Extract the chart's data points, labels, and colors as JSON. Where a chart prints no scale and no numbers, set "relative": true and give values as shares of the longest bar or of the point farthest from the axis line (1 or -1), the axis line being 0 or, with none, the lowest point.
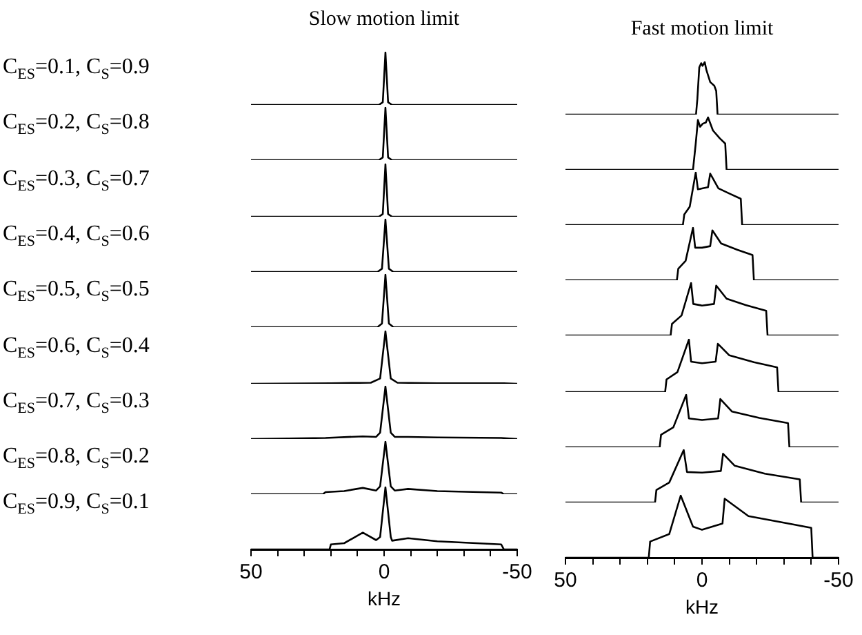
{
  "chart_data": [
    {
      "type": "line",
      "relative": true,
      "title": "Slow motion limit",
      "ylabel": "C$_{ES}$=0.1, C$_{S}$=0.9",
      "color": "#000000",
      "xlim": [
        50,
        -50
      ],
      "tick_labels": false,
      "x": [
        50,
        2,
        0.5,
        -0.5,
        -1.5,
        -3,
        -50
      ],
      "values": [
        0,
        0,
        0.05,
        1,
        0.05,
        0,
        0
      ]
    },
    {
      "type": "line",
      "relative": true,
      "title": "Fast motion limit",
      "color": "#000000",
      "xlim": [
        50,
        -50
      ],
      "tick_labels": false,
      "x": [
        50,
        2.2,
        1.7,
        1,
        0.3,
        -0.2,
        -1,
        -1.6,
        -3,
        -4.5,
        -5.2,
        -5.7,
        -50
      ],
      "values": [
        0,
        0,
        0.3,
        0.9,
        0.98,
        0.93,
        1,
        0.85,
        0.62,
        0.55,
        0.45,
        0,
        0
      ]
    },
    {
      "type": "line",
      "relative": true,
      "ylabel": "C$_{ES}$=0.2, C$_{S}$=0.8",
      "color": "#000000",
      "xlim": [
        50,
        -50
      ],
      "tick_labels": false,
      "x": [
        50,
        2,
        0.5,
        -0.5,
        -1.5,
        -3,
        -50
      ],
      "values": [
        0,
        0,
        0.05,
        1,
        0.05,
        0,
        0
      ]
    },
    {
      "type": "line",
      "relative": true,
      "color": "#000000",
      "xlim": [
        50,
        -50
      ],
      "tick_labels": false,
      "x": [
        50,
        3.3,
        2.8,
        2.3,
        1.5,
        0.7,
        -0.3,
        -1.4,
        -2.2,
        -4,
        -6.5,
        -8.5,
        -9,
        -50
      ],
      "values": [
        0,
        0,
        0.25,
        0.5,
        0.95,
        0.82,
        0.88,
        0.9,
        1,
        0.75,
        0.6,
        0.5,
        0,
        0
      ]
    },
    {
      "type": "line",
      "relative": true,
      "ylabel": "C$_{ES}$=0.3, C$_{S}$=0.7",
      "color": "#000000",
      "xlim": [
        50,
        -50
      ],
      "tick_labels": false,
      "x": [
        50,
        2,
        0.5,
        -0.5,
        -1.5,
        -3,
        -50
      ],
      "values": [
        0,
        0,
        0.05,
        1,
        0.05,
        0,
        0
      ]
    },
    {
      "type": "line",
      "relative": true,
      "color": "#000000",
      "xlim": [
        50,
        -50
      ],
      "tick_labels": false,
      "x": [
        50,
        7,
        6.5,
        4.5,
        2.3,
        1.5,
        -0.3,
        -2.2,
        -3,
        -6,
        -10,
        -14.2,
        -14.7,
        -50
      ],
      "values": [
        0,
        0,
        0.2,
        0.35,
        1,
        0.68,
        0.7,
        0.72,
        0.98,
        0.7,
        0.6,
        0.5,
        0,
        0
      ]
    },
    {
      "type": "line",
      "relative": true,
      "ylabel": "C$_{ES}$=0.4, C$_{S}$=0.6",
      "color": "#000000",
      "xlim": [
        50,
        -50
      ],
      "tick_labels": false,
      "x": [
        50,
        2.5,
        0.8,
        -0.5,
        -1.8,
        -3.5,
        -50
      ],
      "values": [
        0,
        0,
        0.06,
        1,
        0.06,
        0,
        0
      ]
    },
    {
      "type": "line",
      "relative": true,
      "color": "#000000",
      "xlim": [
        50,
        -50
      ],
      "tick_labels": false,
      "x": [
        50,
        9.2,
        8.7,
        6,
        3.3,
        2.5,
        0,
        -3,
        -3.8,
        -7,
        -13,
        -18.5,
        -19,
        -50
      ],
      "values": [
        0,
        0,
        0.22,
        0.37,
        1,
        0.62,
        0.62,
        0.65,
        0.95,
        0.7,
        0.58,
        0.48,
        0,
        0
      ]
    },
    {
      "type": "line",
      "relative": true,
      "ylabel": "C$_{ES}$=0.5, C$_{S}$=0.5",
      "color": "#000000",
      "xlim": [
        50,
        -50
      ],
      "tick_labels": false,
      "x": [
        50,
        2.5,
        0.8,
        -0.5,
        -1.8,
        -3.5,
        -50
      ],
      "values": [
        0,
        0,
        0.07,
        1,
        0.07,
        0,
        0
      ]
    },
    {
      "type": "line",
      "relative": true,
      "color": "#000000",
      "xlim": [
        50,
        -50
      ],
      "tick_labels": false,
      "x": [
        50,
        11.5,
        11,
        7.5,
        4,
        3.2,
        0,
        -4.4,
        -5.2,
        -9,
        -16,
        -23.5,
        -24,
        -50
      ],
      "values": [
        0,
        0,
        0.22,
        0.38,
        1,
        0.6,
        0.57,
        0.6,
        0.95,
        0.7,
        0.58,
        0.47,
        0,
        0
      ]
    },
    {
      "type": "line",
      "relative": true,
      "ylabel": "C$_{ES}$=0.6, C$_{S}$=0.4",
      "color": "#000000",
      "xlim": [
        50,
        -50
      ],
      "tick_labels": false,
      "x": [
        50,
        20,
        5,
        1.5,
        -0.5,
        -2.5,
        -5,
        -20,
        -45,
        -50
      ],
      "values": [
        0,
        0.01,
        0.02,
        0.1,
        1,
        0.1,
        0.02,
        0.01,
        0.01,
        0
      ]
    },
    {
      "type": "line",
      "relative": true,
      "color": "#000000",
      "xlim": [
        50,
        -50
      ],
      "tick_labels": false,
      "x": [
        50,
        13.5,
        13,
        9,
        4.8,
        4,
        0,
        -5,
        -5.8,
        -10,
        -19,
        -27.5,
        -28,
        -50
      ],
      "values": [
        0,
        0,
        0.24,
        0.38,
        1,
        0.58,
        0.55,
        0.58,
        0.92,
        0.7,
        0.57,
        0.47,
        0,
        0
      ]
    },
    {
      "type": "line",
      "relative": true,
      "ylabel": "C$_{ES}$=0.7, C$_{S}$=0.3",
      "color": "#000000",
      "xlim": [
        50,
        -50
      ],
      "tick_labels": false,
      "x": [
        50,
        22,
        8,
        3,
        1.5,
        -0.5,
        -2.5,
        -4,
        -9,
        -20,
        -44,
        -50
      ],
      "values": [
        0,
        0.02,
        0.05,
        0.04,
        0.12,
        1,
        0.12,
        0.04,
        0.04,
        0.03,
        0.02,
        0
      ]
    },
    {
      "type": "line",
      "relative": true,
      "color": "#000000",
      "xlim": [
        50,
        -50
      ],
      "tick_labels": false,
      "x": [
        50,
        15.5,
        15,
        10.5,
        5.8,
        4.8,
        0,
        -5.9,
        -6.7,
        -11,
        -21,
        -31.5,
        -32,
        -50
      ],
      "values": [
        0,
        0,
        0.24,
        0.38,
        1,
        0.55,
        0.52,
        0.55,
        0.92,
        0.68,
        0.56,
        0.46,
        0,
        0
      ]
    },
    {
      "type": "line",
      "relative": true,
      "ylabel": "C$_{ES}$=0.8, C$_{S}$=0.2",
      "color": "#000000",
      "xlim": [
        50,
        -50
      ],
      "tick_labels": false,
      "x": [
        50,
        23,
        22,
        15,
        8,
        3,
        1.5,
        -0.5,
        -2.5,
        -4,
        -9,
        -20,
        -44,
        -45,
        -50
      ],
      "values": [
        0,
        0,
        0.04,
        0.06,
        0.12,
        0.07,
        0.15,
        1,
        0.15,
        0.07,
        0.1,
        0.06,
        0.03,
        0,
        0
      ]
    },
    {
      "type": "line",
      "relative": true,
      "color": "#000000",
      "xlim": [
        50,
        -50
      ],
      "tick_labels": false,
      "x": [
        50,
        17.2,
        16.7,
        12,
        6.7,
        5.5,
        0,
        -6.9,
        -7.7,
        -12,
        -23,
        -35.8,
        -36.3,
        -50
      ],
      "values": [
        0,
        0,
        0.24,
        0.38,
        1,
        0.58,
        0.57,
        0.6,
        0.93,
        0.7,
        0.55,
        0.44,
        0,
        0
      ]
    },
    {
      "type": "line",
      "relative": true,
      "ylabel": "C$_{ES}$=0.9, C$_{S}$=0.1",
      "xlabel": "kHz",
      "color": "#000000",
      "xlim": [
        50,
        -50
      ],
      "xticks": [
        50,
        {
          "value": 40,
          "label": null
        },
        {
          "value": 30,
          "label": null
        },
        {
          "value": 20,
          "label": null
        },
        {
          "value": 10,
          "label": null
        },
        0,
        {
          "value": -10,
          "label": null
        },
        {
          "value": -20,
          "label": null
        },
        {
          "value": -30,
          "label": null
        },
        {
          "value": -40,
          "label": null
        },
        -50
      ],
      "tick_labels": "x",
      "x": [
        50,
        20.5,
        20,
        15,
        8,
        3,
        1.5,
        -0.5,
        -2.5,
        -3,
        -9,
        -20,
        -44,
        -45,
        -50
      ],
      "values": [
        0,
        0,
        0.08,
        0.1,
        0.27,
        0.15,
        0.2,
        1,
        0.2,
        0.14,
        0.18,
        0.13,
        0.08,
        0,
        0
      ]
    },
    {
      "type": "line",
      "relative": true,
      "xlabel": "kHz",
      "color": "#000000",
      "xlim": [
        50,
        -50
      ],
      "xticks": [
        50,
        {
          "value": 40,
          "label": null
        },
        {
          "value": 30,
          "label": null
        },
        {
          "value": 20,
          "label": null
        },
        {
          "value": 10,
          "label": null
        },
        0,
        {
          "value": -10,
          "label": null
        },
        {
          "value": -20,
          "label": null
        },
        {
          "value": -30,
          "label": null
        },
        {
          "value": -40,
          "label": null
        },
        -50
      ],
      "tick_labels": "x",
      "x": [
        50,
        19.5,
        19,
        12,
        7.8,
        3.3,
        0,
        -7.5,
        -8.3,
        -17,
        -34,
        -40,
        -40.5,
        -50
      ],
      "values": [
        0,
        0,
        0.26,
        0.38,
        1,
        0.5,
        0.45,
        0.55,
        0.95,
        0.67,
        0.53,
        0.48,
        0,
        0
      ]
    }
  ]
}
